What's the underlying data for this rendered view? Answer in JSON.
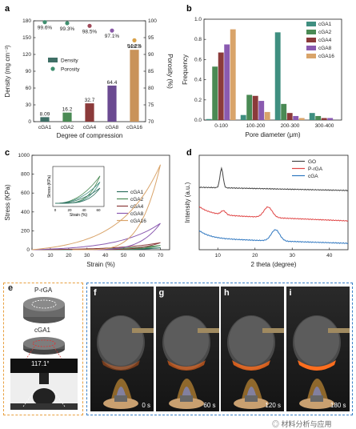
{
  "panels": {
    "a": {
      "label": "a",
      "chart_data": {
        "type": "bar",
        "categories": [
          "cGA1",
          "cGA2",
          "cGA4",
          "cGA8",
          "cGA16"
        ],
        "density": [
          8.09,
          16.2,
          32.7,
          64.4,
          128.3
        ],
        "porosity": [
          99.6,
          99.3,
          98.5,
          97.1,
          94.2
        ],
        "density_labels": [
          "8.09",
          "16.2",
          "32.7",
          "64.4",
          "128.3"
        ],
        "porosity_labels": [
          "99.6%",
          "99.3%",
          "98.5%",
          "97.1%",
          "94.2%"
        ],
        "bar_colors": [
          "#3f6f66",
          "#4a8a54",
          "#8b3a3a",
          "#6b4a91",
          "#c9935a"
        ],
        "dot_colors": [
          "#3f8f6f",
          "#3f8f6f",
          "#a04a5a",
          "#8a5aa8",
          "#d9a24a"
        ],
        "xlabel": "Degree of compression",
        "ylabel": "Density (mg cm⁻³)",
        "y2label": "Porosity (%)",
        "ylim": [
          0,
          180
        ],
        "y2lim": [
          70,
          100
        ],
        "yticks": [
          "0",
          "30",
          "60",
          "90",
          "120",
          "150",
          "180"
        ],
        "y2ticks": [
          "70",
          "75",
          "80",
          "85",
          "90",
          "95",
          "100"
        ],
        "legend": [
          "Density",
          "Porosity"
        ]
      }
    },
    "b": {
      "label": "b",
      "chart_data": {
        "type": "bar",
        "categories": [
          "0-100",
          "100-200",
          "200-300",
          "300-400"
        ],
        "series": [
          {
            "name": "cGA1",
            "color": "#3f8f80",
            "values": [
              0.01,
              0.05,
              0.87,
              0.07
            ]
          },
          {
            "name": "cGA2",
            "color": "#4a8a54",
            "values": [
              0.53,
              0.25,
              0.16,
              0.04
            ]
          },
          {
            "name": "cGA4",
            "color": "#8b3a3a",
            "values": [
              0.67,
              0.24,
              0.07,
              0.02
            ]
          },
          {
            "name": "cGA8",
            "color": "#8a5ab0",
            "values": [
              0.75,
              0.19,
              0.04,
              0.02
            ]
          },
          {
            "name": "cGA16",
            "color": "#d9a46a",
            "values": [
              0.9,
              0.08,
              0.02,
              0.0
            ]
          }
        ],
        "xlabel": "Pore diameter (μm)",
        "ylabel": "Frequency",
        "ylim": [
          0,
          1.0
        ],
        "yticks": [
          "0.0",
          "0.2",
          "0.4",
          "0.6",
          "0.8",
          "1.0"
        ]
      }
    },
    "c": {
      "label": "c",
      "chart_data": {
        "type": "line",
        "series": [
          {
            "name": "cGA1",
            "color": "#2f6f5f",
            "peak": 20
          },
          {
            "name": "cGA2",
            "color": "#4a8a54",
            "peak": 45
          },
          {
            "name": "cGA4",
            "color": "#8b3a3a",
            "peak": 75
          },
          {
            "name": "cGA8",
            "color": "#8a5ab0",
            "peak": 280
          },
          {
            "name": "cGA16",
            "color": "#d9a46a",
            "peak": 900
          }
        ],
        "xlabel": "Strain (%)",
        "ylabel": "Stress (KPa)",
        "xlim": [
          0,
          75
        ],
        "ylim": [
          0,
          1000
        ],
        "xticks": [
          "0",
          "10",
          "20",
          "30",
          "40",
          "50",
          "60",
          "70"
        ],
        "yticks": [
          "0",
          "200",
          "400",
          "600",
          "800",
          "1000"
        ],
        "inset": {
          "xlabel": "Strain (%)",
          "ylabel": "Stress (KPa)",
          "xticks": [
            "0",
            "20",
            "40",
            "60"
          ]
        }
      }
    },
    "d": {
      "label": "d",
      "chart_data": {
        "type": "line",
        "series": [
          {
            "name": "GO",
            "color": "#444444",
            "peak_x": 11
          },
          {
            "name": "P-rGA",
            "color": "#e04545",
            "peak_x": 23.5
          },
          {
            "name": "cGA",
            "color": "#2f77c0",
            "peak_x": 25.5
          }
        ],
        "xlabel": "2 theta  (degree)",
        "ylabel": "Intensity (a.u.)",
        "xlim": [
          5,
          45
        ],
        "xticks": [
          "10",
          "20",
          "30",
          "40"
        ]
      }
    },
    "e": {
      "label": "e",
      "top_label": "P-rGA",
      "mid_label": "cGA1",
      "angle": "117.1°"
    },
    "f": {
      "label": "f",
      "time": "0 s"
    },
    "g": {
      "label": "g",
      "time": "60 s"
    },
    "h": {
      "label": "h",
      "time": "120 s"
    },
    "i": {
      "label": "i",
      "time": "180 s"
    }
  },
  "watermark": "材料分析与应用"
}
